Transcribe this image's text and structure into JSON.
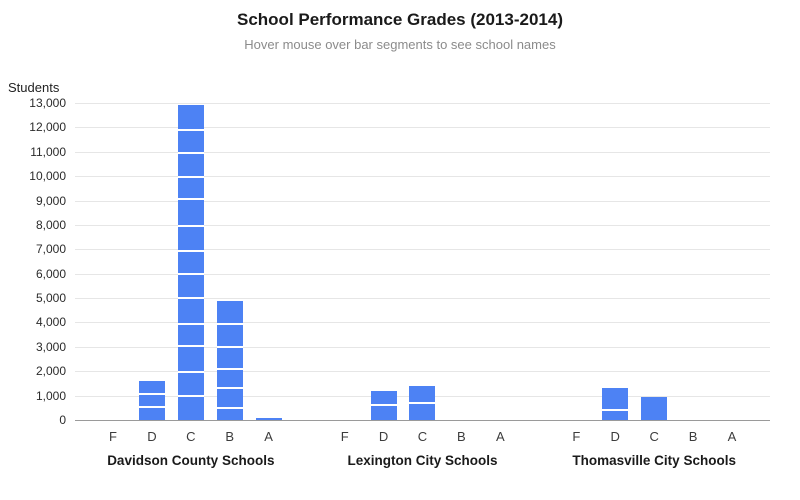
{
  "chart": {
    "title": "School Performance Grades (2013-2014)",
    "subtitle": "Hover mouse over bar segments to see school names",
    "y_axis_title": "Students"
  },
  "chart_data": {
    "type": "bar",
    "stacked": true,
    "title": "School Performance Grades (2013-2014)",
    "subtitle": "Hover mouse over bar segments to see school names",
    "xlabel": "",
    "ylabel": "Students",
    "ylim": [
      0,
      13000
    ],
    "y_tick_step": 1000,
    "grid": true,
    "legend": false,
    "bar_color": "#4d82f4",
    "grid_color": "#e6e6e6",
    "axis_color": "#9a9a9a",
    "categories": [
      "F",
      "D",
      "C",
      "B",
      "A"
    ],
    "groups": [
      {
        "label": "Davidson County Schools",
        "totals": [
          0,
          1600,
          12900,
          4900,
          100
        ],
        "segments": [
          [],
          [
            550,
            500,
            550
          ],
          [
            1000,
            950,
            1100,
            900,
            1050,
            1000,
            950,
            1000,
            1100,
            900,
            1000,
            950,
            1000
          ],
          [
            500,
            800,
            800,
            900,
            950,
            950
          ],
          [
            100
          ]
        ]
      },
      {
        "label": "Lexington City Schools",
        "totals": [
          0,
          1200,
          1400,
          0,
          0
        ],
        "segments": [
          [],
          [
            600,
            600
          ],
          [
            700,
            700
          ],
          [],
          []
        ]
      },
      {
        "label": "Thomasville City Schools",
        "totals": [
          0,
          1300,
          950,
          0,
          0
        ],
        "segments": [
          [],
          [
            400,
            900
          ],
          [
            950
          ],
          [],
          []
        ]
      }
    ]
  }
}
